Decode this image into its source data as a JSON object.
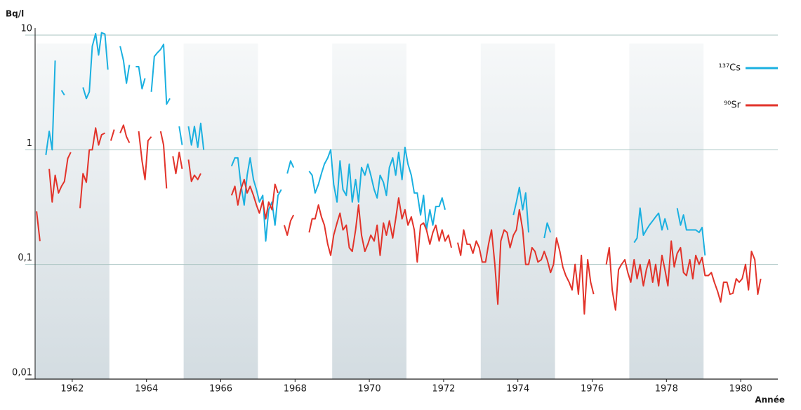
{
  "chart_data": {
    "type": "line",
    "y_label": "Bq/l",
    "x_label": "Année",
    "log_y": true,
    "grid": true,
    "legend_position": "right",
    "ylim": [
      0.01,
      10
    ],
    "yticks": [
      {
        "value": 0.01,
        "label": "0,01"
      },
      {
        "value": 0.1,
        "label": "0,1"
      },
      {
        "value": 1,
        "label": "1"
      },
      {
        "value": 10,
        "label": "10"
      }
    ],
    "xlim": [
      1961,
      1981
    ],
    "xticks": [
      1962,
      1964,
      1966,
      1968,
      1970,
      1972,
      1974,
      1976,
      1978,
      1980
    ],
    "shaded_bands": [
      [
        1961,
        1963
      ],
      [
        1965,
        1967
      ],
      [
        1969,
        1971
      ],
      [
        1973,
        1975
      ],
      [
        1977,
        1979
      ]
    ],
    "x": [
      1961.04,
      1961.13,
      1961.21,
      1961.29,
      1961.38,
      1961.46,
      1961.54,
      1961.63,
      1961.71,
      1961.79,
      1961.88,
      1961.96,
      1962.04,
      1962.13,
      1962.21,
      1962.29,
      1962.38,
      1962.46,
      1962.54,
      1962.63,
      1962.71,
      1962.79,
      1962.88,
      1962.96,
      1963.04,
      1963.13,
      1963.21,
      1963.29,
      1963.38,
      1963.46,
      1963.54,
      1963.63,
      1963.71,
      1963.79,
      1963.88,
      1963.96,
      1964.04,
      1964.13,
      1964.21,
      1964.29,
      1964.38,
      1964.46,
      1964.54,
      1964.63,
      1964.71,
      1964.79,
      1964.88,
      1964.96,
      1965.04,
      1965.13,
      1965.21,
      1965.29,
      1965.38,
      1965.46,
      1965.54,
      1965.63,
      1965.71,
      1965.79,
      1965.88,
      1965.96,
      1966.04,
      1966.13,
      1966.21,
      1966.29,
      1966.38,
      1966.46,
      1966.54,
      1966.63,
      1966.71,
      1966.79,
      1966.88,
      1966.96,
      1967.04,
      1967.13,
      1967.21,
      1967.29,
      1967.38,
      1967.46,
      1967.54,
      1967.63,
      1967.71,
      1967.79,
      1967.88,
      1967.96,
      1968.04,
      1968.13,
      1968.21,
      1968.29,
      1968.38,
      1968.46,
      1968.54,
      1968.63,
      1968.71,
      1968.79,
      1968.88,
      1968.96,
      1969.04,
      1969.13,
      1969.21,
      1969.29,
      1969.38,
      1969.46,
      1969.54,
      1969.63,
      1969.71,
      1969.79,
      1969.88,
      1969.96,
      1970.04,
      1970.13,
      1970.21,
      1970.29,
      1970.38,
      1970.46,
      1970.54,
      1970.63,
      1970.71,
      1970.79,
      1970.88,
      1970.96,
      1971.04,
      1971.13,
      1971.21,
      1971.29,
      1971.38,
      1971.46,
      1971.54,
      1971.63,
      1971.71,
      1971.79,
      1971.88,
      1971.96,
      1972.04,
      1972.13,
      1972.21,
      1972.29,
      1972.38,
      1972.46,
      1972.54,
      1972.63,
      1972.71,
      1972.79,
      1972.88,
      1972.96,
      1973.04,
      1973.13,
      1973.21,
      1973.29,
      1973.38,
      1973.46,
      1973.54,
      1973.63,
      1973.71,
      1973.79,
      1973.88,
      1973.96,
      1974.04,
      1974.13,
      1974.21,
      1974.29,
      1974.38,
      1974.46,
      1974.54,
      1974.63,
      1974.71,
      1974.79,
      1974.88,
      1974.96,
      1975.04,
      1975.13,
      1975.21,
      1975.29,
      1975.38,
      1975.46,
      1975.54,
      1975.63,
      1975.71,
      1975.79,
      1975.88,
      1975.96,
      1976.04,
      1976.13,
      1976.21,
      1976.29,
      1976.38,
      1976.46,
      1976.54,
      1976.63,
      1976.71,
      1976.79,
      1976.88,
      1976.96,
      1977.04,
      1977.13,
      1977.21,
      1977.29,
      1977.38,
      1977.46,
      1977.54,
      1977.63,
      1977.71,
      1977.79,
      1977.88,
      1977.96,
      1978.04,
      1978.13,
      1978.21,
      1978.29,
      1978.38,
      1978.46,
      1978.54,
      1978.63,
      1978.71,
      1978.79,
      1978.88,
      1978.96,
      1979.04,
      1979.13,
      1979.21,
      1979.29,
      1979.38,
      1979.46,
      1979.54,
      1979.63,
      1979.71,
      1979.79,
      1979.88,
      1979.96,
      1980.04,
      1980.13,
      1980.21,
      1980.29,
      1980.38,
      1980.46,
      1980.54
    ],
    "series": [
      {
        "name": "¹³⁷Cs",
        "color": "#1ab0e0",
        "values": [
          null,
          null,
          null,
          0.9,
          1.45,
          1.0,
          6.0,
          null,
          3.3,
          3.0,
          null,
          null,
          null,
          null,
          null,
          3.5,
          2.8,
          3.2,
          8.0,
          10.3,
          6.7,
          10.5,
          10.2,
          5.0,
          null,
          null,
          null,
          8.0,
          6.0,
          3.8,
          5.5,
          null,
          5.3,
          5.3,
          3.4,
          4.2,
          null,
          3.2,
          6.5,
          7.0,
          7.5,
          8.3,
          2.5,
          2.8,
          null,
          null,
          1.6,
          1.1,
          null,
          1.6,
          1.1,
          1.6,
          1.05,
          1.7,
          1.0,
          null,
          null,
          null,
          null,
          null,
          null,
          null,
          null,
          0.72,
          0.85,
          0.85,
          0.5,
          0.33,
          0.6,
          0.85,
          0.55,
          0.45,
          0.35,
          0.4,
          0.16,
          0.3,
          0.35,
          0.22,
          0.4,
          0.45,
          null,
          0.62,
          0.8,
          0.7,
          null,
          null,
          null,
          null,
          0.65,
          0.6,
          0.42,
          0.5,
          0.62,
          0.75,
          0.85,
          1.0,
          0.5,
          0.35,
          0.8,
          0.45,
          0.4,
          0.75,
          0.35,
          0.55,
          0.35,
          0.7,
          0.6,
          0.75,
          0.6,
          0.45,
          0.38,
          0.6,
          0.52,
          0.4,
          0.7,
          0.85,
          0.6,
          0.95,
          0.55,
          1.05,
          0.75,
          0.6,
          0.42,
          0.42,
          0.27,
          0.4,
          0.2,
          0.3,
          0.22,
          0.32,
          0.32,
          0.38,
          0.3,
          null,
          null,
          null,
          null,
          null,
          null,
          null,
          null,
          null,
          null,
          null,
          null,
          null,
          null,
          null,
          null,
          null,
          null,
          null,
          null,
          null,
          0.27,
          0.35,
          0.47,
          0.3,
          0.42,
          0.19,
          null,
          null,
          null,
          null,
          0.17,
          0.23,
          0.19,
          null,
          null,
          null,
          null,
          null,
          null,
          null,
          null,
          null,
          null,
          null,
          null,
          null,
          null,
          null,
          null,
          null,
          null,
          null,
          null,
          null,
          null,
          null,
          null,
          null,
          null,
          0.155,
          0.17,
          0.31,
          0.18,
          0.2,
          0.22,
          0.24,
          0.26,
          0.28,
          0.2,
          0.25,
          0.2,
          null,
          null,
          0.31,
          0.22,
          0.27,
          0.2,
          0.2,
          0.2,
          0.2,
          0.19,
          0.21,
          0.12,
          null,
          null,
          null,
          null,
          null,
          null,
          null,
          null,
          null,
          null,
          null,
          null,
          null,
          null,
          null,
          null,
          null,
          null
        ]
      },
      {
        "name": "⁹⁰Sr",
        "color": "#e2332a",
        "values": [
          0.29,
          0.16,
          null,
          null,
          0.68,
          0.35,
          0.6,
          0.42,
          0.48,
          0.53,
          0.84,
          0.95,
          null,
          null,
          0.31,
          0.62,
          0.52,
          1.0,
          1.0,
          1.55,
          1.1,
          1.35,
          1.4,
          null,
          1.2,
          1.5,
          null,
          1.4,
          1.64,
          1.3,
          1.15,
          null,
          null,
          1.45,
          0.8,
          0.55,
          1.2,
          1.3,
          null,
          null,
          1.45,
          1.1,
          0.46,
          null,
          0.88,
          0.62,
          0.95,
          0.68,
          null,
          0.82,
          0.53,
          0.6,
          0.55,
          0.62,
          null,
          null,
          null,
          null,
          null,
          null,
          null,
          null,
          null,
          0.4,
          0.48,
          0.33,
          0.45,
          0.55,
          0.42,
          0.48,
          0.4,
          0.33,
          0.28,
          0.36,
          0.25,
          0.35,
          0.3,
          0.5,
          0.42,
          null,
          0.22,
          0.18,
          0.24,
          0.27,
          null,
          null,
          null,
          null,
          0.19,
          0.25,
          0.25,
          0.33,
          0.26,
          0.22,
          0.15,
          0.12,
          0.18,
          0.23,
          0.28,
          0.2,
          0.22,
          0.14,
          0.13,
          0.2,
          0.33,
          0.18,
          0.13,
          0.15,
          0.18,
          0.16,
          0.22,
          0.12,
          0.23,
          0.18,
          0.24,
          0.17,
          0.25,
          0.38,
          0.25,
          0.3,
          0.22,
          0.26,
          0.2,
          0.105,
          0.22,
          0.23,
          0.2,
          0.15,
          0.19,
          0.22,
          0.16,
          0.2,
          0.16,
          0.18,
          0.14,
          null,
          0.155,
          0.12,
          0.2,
          0.15,
          0.15,
          0.125,
          0.16,
          0.14,
          0.105,
          0.105,
          0.15,
          0.2,
          0.1,
          0.045,
          0.16,
          0.2,
          0.19,
          0.14,
          0.18,
          0.2,
          0.3,
          0.2,
          0.1,
          0.1,
          0.14,
          0.13,
          0.105,
          0.11,
          0.13,
          0.11,
          0.085,
          0.1,
          0.17,
          0.13,
          0.095,
          0.08,
          0.07,
          0.06,
          0.1,
          0.055,
          0.12,
          0.037,
          0.11,
          0.07,
          0.055,
          null,
          null,
          null,
          0.1,
          0.14,
          0.06,
          0.04,
          0.09,
          0.1,
          0.11,
          0.085,
          0.07,
          0.11,
          0.075,
          0.1,
          0.065,
          0.09,
          0.11,
          0.07,
          0.1,
          0.065,
          0.12,
          0.09,
          0.065,
          0.16,
          0.095,
          0.125,
          0.14,
          0.085,
          0.08,
          0.11,
          0.075,
          0.12,
          0.1,
          0.115,
          0.08,
          0.08,
          0.085,
          0.07,
          0.058,
          0.047,
          0.07,
          0.07,
          0.055,
          0.056,
          0.075,
          0.07,
          0.075,
          0.1,
          0.06,
          0.13,
          0.11,
          0.055,
          0.075
        ]
      }
    ]
  }
}
